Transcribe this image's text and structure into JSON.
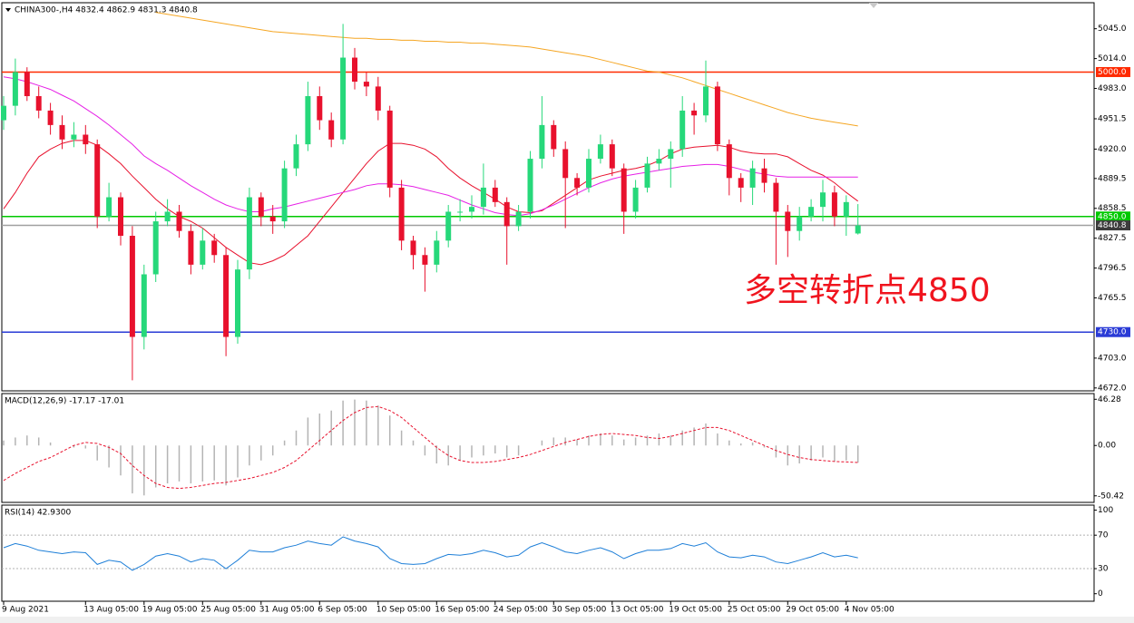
{
  "chart_data": [
    {
      "type": "candlestick",
      "title": "CHINA300-,H4 4832.4 4862.9 4831.3 4840.8",
      "categories": [
        "9 Aug 2021",
        null,
        null,
        null,
        null,
        null,
        null,
        "13 Aug 05:00",
        null,
        null,
        null,
        null,
        "19 Aug 05:00",
        null,
        null,
        null,
        null,
        "25 Aug 05:00",
        null,
        null,
        null,
        null,
        "31 Aug 05:00",
        null,
        null,
        null,
        null,
        "6 Sep 05:00",
        null,
        null,
        null,
        null,
        "10 Sep 05:00",
        null,
        null,
        null,
        null,
        "16 Sep 05:00",
        null,
        null,
        null,
        null,
        "24 Sep 05:00",
        null,
        null,
        null,
        null,
        "30 Sep 05:00",
        null,
        null,
        null,
        null,
        "13 Oct 05:00",
        null,
        null,
        null,
        null,
        "19 Oct 05:00",
        null,
        null,
        null,
        null,
        "25 Oct 05:00",
        null,
        null,
        null,
        null,
        "29 Oct 05:00",
        null,
        null,
        null,
        null,
        "4 Nov 05:00",
        null
      ],
      "open": [
        4950,
        4965,
        5000,
        4975,
        4960,
        4945,
        4930,
        4935,
        4925,
        4850,
        4870,
        4830,
        4725,
        4790,
        4845,
        4855,
        4835,
        4800,
        4825,
        4810,
        4725,
        4795,
        4870,
        4850,
        4845,
        4900,
        4925,
        4975,
        4950,
        4930,
        5015,
        4990,
        4985,
        4960,
        4880,
        4825,
        4810,
        4800,
        4825,
        4855,
        4855,
        4860,
        4880,
        4865,
        4840,
        4855,
        4910,
        4945,
        4920,
        4890,
        4880,
        4910,
        4925,
        4900,
        4855,
        4880,
        4905,
        4910,
        4920,
        4960,
        4955,
        4985,
        4925,
        4890,
        4880,
        4900,
        4885,
        4855,
        4835,
        4850,
        4860,
        4875,
        4850,
        4832.4
      ],
      "high": [
        4975,
        5014,
        5005,
        4985,
        4968,
        4955,
        4948,
        4945,
        4930,
        4885,
        4875,
        4840,
        4800,
        4855,
        4868,
        4862,
        4842,
        4838,
        4832,
        4818,
        4805,
        4880,
        4875,
        4862,
        4908,
        4935,
        4990,
        4985,
        4958,
        5050,
        5025,
        5000,
        4995,
        4965,
        4888,
        4830,
        4818,
        4835,
        4862,
        4868,
        4872,
        4905,
        4888,
        4870,
        4862,
        4918,
        4975,
        4950,
        4928,
        4895,
        4920,
        4935,
        4930,
        4905,
        4888,
        4912,
        4920,
        4928,
        4975,
        4968,
        5012,
        4990,
        4930,
        4895,
        4908,
        4910,
        4890,
        4862,
        4860,
        4868,
        4888,
        4882,
        4872,
        4862.9
      ],
      "low": [
        4940,
        4955,
        4970,
        4952,
        4935,
        4920,
        4922,
        4915,
        4838,
        4845,
        4820,
        4680,
        4712,
        4782,
        4840,
        4828,
        4790,
        4795,
        4802,
        4705,
        4718,
        4785,
        4840,
        4832,
        4838,
        4892,
        4918,
        4940,
        4922,
        4925,
        4982,
        4975,
        4950,
        4870,
        4815,
        4795,
        4772,
        4792,
        4818,
        4845,
        4848,
        4852,
        4860,
        4800,
        4835,
        4848,
        4900,
        4912,
        4838,
        4872,
        4875,
        4905,
        4892,
        4832,
        4848,
        4875,
        4898,
        4880,
        4912,
        4935,
        4948,
        4918,
        4872,
        4865,
        4862,
        4875,
        4800,
        4808,
        4825,
        4845,
        4845,
        4840,
        4830,
        4831.3
      ],
      "close": [
        4965,
        5000,
        4975,
        4960,
        4945,
        4930,
        4935,
        4925,
        4850,
        4870,
        4830,
        4725,
        4790,
        4845,
        4855,
        4835,
        4800,
        4825,
        4810,
        4725,
        4795,
        4870,
        4850,
        4845,
        4900,
        4925,
        4975,
        4950,
        4930,
        5015,
        4990,
        4985,
        4960,
        4880,
        4825,
        4810,
        4800,
        4825,
        4855,
        4855,
        4860,
        4880,
        4865,
        4840,
        4855,
        4910,
        4945,
        4920,
        4890,
        4880,
        4910,
        4925,
        4900,
        4855,
        4880,
        4905,
        4910,
        4920,
        4960,
        4955,
        4985,
        4925,
        4890,
        4880,
        4900,
        4885,
        4855,
        4835,
        4850,
        4860,
        4875,
        4850,
        4865,
        4840.8
      ],
      "up_color": "#26d87a",
      "down_color": "#e8112d",
      "series": [
        {
          "color": "#e8112d",
          "values": [
            4858,
            4875,
            4895,
            4912,
            4920,
            4926,
            4929,
            4929,
            4924,
            4915,
            4905,
            4892,
            4880,
            4868,
            4858,
            4850,
            4845,
            4838,
            4828,
            4818,
            4810,
            4802,
            4800,
            4804,
            4810,
            4820,
            4830,
            4845,
            4860,
            4875,
            4890,
            4905,
            4918,
            4926,
            4926,
            4924,
            4920,
            4912,
            4900,
            4890,
            4882,
            4875,
            4868,
            4860,
            4855,
            4854,
            4856,
            4864,
            4872,
            4880,
            4888,
            4892,
            4895,
            4898,
            4900,
            4903,
            4908,
            4915,
            4920,
            4922,
            4923,
            4924,
            4922,
            4918,
            4916,
            4915,
            4915,
            4912,
            4905,
            4898,
            4893,
            4885,
            4875,
            4866
          ]
        },
        {
          "color": "#e620e6",
          "values": [
            4995,
            4993,
            4990,
            4986,
            4982,
            4976,
            4970,
            4962,
            4954,
            4945,
            4935,
            4925,
            4913,
            4905,
            4898,
            4890,
            4882,
            4875,
            4868,
            4862,
            4858,
            4855,
            4855,
            4858,
            4860,
            4863,
            4866,
            4869,
            4872,
            4875,
            4878,
            4882,
            4884,
            4884,
            4883,
            4881,
            4878,
            4875,
            4872,
            4867,
            4862,
            4858,
            4854,
            4852,
            4851,
            4853,
            4857,
            4862,
            4868,
            4874,
            4880,
            4885,
            4889,
            4892,
            4894,
            4896,
            4898,
            4900,
            4902,
            4903,
            4904,
            4904,
            4902,
            4899,
            4896,
            4894,
            4892,
            4891,
            4891,
            4891,
            4891,
            4891,
            4891,
            4891
          ]
        },
        {
          "color": "#f5a623",
          "values": [
            null,
            null,
            null,
            null,
            null,
            null,
            null,
            null,
            null,
            null,
            null,
            null,
            null,
            5062,
            5060,
            5058,
            5056,
            5054,
            5052,
            5050,
            5048,
            5046,
            5044,
            5042,
            5041,
            5040,
            5039,
            5038,
            5037,
            5036,
            5035,
            5035,
            5034,
            5034,
            5033,
            5033,
            5032,
            5032,
            5031,
            5031,
            5030,
            5030,
            5029,
            5028,
            5027,
            5026,
            5024,
            5022,
            5020,
            5018,
            5016,
            5013,
            5010,
            5007,
            5004,
            5001,
            5000,
            4997,
            4994,
            4990,
            4986,
            4982,
            4978,
            4974,
            4970,
            4966,
            4962,
            4958,
            4955,
            4952,
            4950,
            4948,
            4946,
            4944
          ]
        }
      ],
      "levels": [
        {
          "value": 5000,
          "label": "5000.0",
          "color": "#ff2a00"
        },
        {
          "value": 4850,
          "label": "4850.0",
          "color": "#00c800"
        },
        {
          "value": 4840.8,
          "label": "4840.8",
          "color": "#a0a0a0"
        },
        {
          "value": 4730,
          "label": "4730.0",
          "color": "#2a3bd6"
        }
      ],
      "annotation": "多空转折点4850",
      "ylim": [
        4669,
        5072
      ],
      "yticks": [
        {
          "value": 5045,
          "label": "5045.0"
        },
        {
          "value": 5014,
          "label": "5014.0"
        },
        {
          "value": 4983,
          "label": "4983.0"
        },
        {
          "value": 4951.5,
          "label": "4951.5"
        },
        {
          "value": 4920,
          "label": "4920.0"
        },
        {
          "value": 4889.5,
          "label": "4889.5"
        },
        {
          "value": 4858.5,
          "label": "4858.5"
        },
        {
          "value": 4827.5,
          "label": "4827.5"
        },
        {
          "value": 4796.5,
          "label": "4796.5"
        },
        {
          "value": 4765.5,
          "label": "4765.5"
        },
        {
          "value": 4703,
          "label": "4703.0"
        },
        {
          "value": 4672,
          "label": "4672.0"
        }
      ]
    },
    {
      "type": "macd",
      "title": "MACD(12,26,9) -17.17 -17.01",
      "series": [
        {
          "type": "bar",
          "color": "#b4b4b4",
          "values": [
            5,
            8,
            10,
            8,
            3,
            0,
            -2,
            -3,
            -15,
            -22,
            -30,
            -48,
            -50,
            -42,
            -38,
            -36,
            -38,
            -36,
            -35,
            -40,
            -32,
            -20,
            -15,
            -10,
            5,
            15,
            28,
            32,
            35,
            45,
            46,
            45,
            40,
            30,
            15,
            5,
            -10,
            -18,
            -20,
            -15,
            -12,
            -10,
            -8,
            -12,
            -10,
            0,
            5,
            8,
            8,
            6,
            10,
            12,
            10,
            6,
            8,
            10,
            12,
            10,
            15,
            18,
            22,
            12,
            5,
            2,
            3,
            -2,
            -12,
            -20,
            -18,
            -15,
            -12,
            -16,
            -15,
            -17.17
          ]
        },
        {
          "type": "line",
          "color": "#e8112d",
          "dash": true,
          "values": [
            -35,
            -28,
            -22,
            -16,
            -12,
            -6,
            0,
            3,
            2,
            -2,
            -8,
            -20,
            -30,
            -38,
            -42,
            -43,
            -42,
            -40,
            -38,
            -37,
            -35,
            -33,
            -30,
            -27,
            -22,
            -15,
            -5,
            5,
            15,
            25,
            33,
            38,
            39,
            35,
            28,
            18,
            8,
            -2,
            -10,
            -15,
            -17,
            -17,
            -16,
            -14,
            -12,
            -9,
            -5,
            -1,
            3,
            6,
            9,
            11,
            12,
            11,
            10,
            8,
            7,
            9,
            12,
            15,
            18,
            18,
            15,
            10,
            5,
            0,
            -5,
            -9,
            -12,
            -14,
            -15,
            -16,
            -16.5,
            -17.01
          ]
        }
      ],
      "ylim": [
        -57,
        52
      ],
      "yticks": [
        46.28,
        {
          "value": 0,
          "label": "0.00"
        },
        -50.42
      ]
    },
    {
      "type": "line",
      "title": "RSI(14) 42.9300",
      "series": [
        {
          "color": "#1e7fd8",
          "values": [
            55,
            60,
            57,
            52,
            50,
            48,
            50,
            49,
            35,
            40,
            38,
            28,
            35,
            45,
            48,
            45,
            38,
            42,
            40,
            30,
            40,
            52,
            50,
            50,
            55,
            58,
            63,
            60,
            58,
            68,
            63,
            60,
            56,
            42,
            36,
            35,
            36,
            42,
            47,
            46,
            48,
            52,
            49,
            44,
            46,
            56,
            61,
            56,
            50,
            48,
            52,
            55,
            50,
            42,
            48,
            52,
            52,
            54,
            60,
            57,
            61,
            50,
            44,
            43,
            46,
            44,
            38,
            36,
            40,
            44,
            49,
            44,
            46,
            42.93
          ]
        }
      ],
      "levels": [
        70,
        30
      ],
      "ylim": [
        -9,
        106
      ],
      "yticks": [
        100,
        70,
        30,
        0
      ]
    }
  ]
}
